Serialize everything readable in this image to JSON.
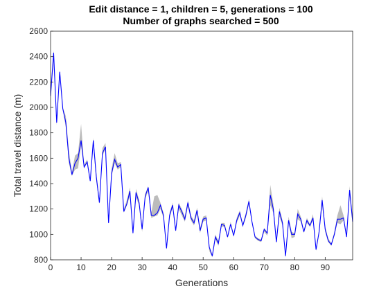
{
  "chart_data": {
    "type": "line",
    "title": [
      "Edit distance = 1, children = 5, generations = 100",
      "Number of graphs searched = 500"
    ],
    "xlabel": "Generations",
    "ylabel": "Total travel distance (m)",
    "xlim": [
      0,
      99
    ],
    "ylim": [
      800,
      2600
    ],
    "xticks": [
      0,
      10,
      20,
      30,
      40,
      50,
      60,
      70,
      80,
      90
    ],
    "yticks": [
      800,
      1000,
      1200,
      1400,
      1600,
      1800,
      2000,
      2200,
      2400,
      2600
    ],
    "grid": false,
    "colors": {
      "line": "#0000ff",
      "band": "#bcbcbc"
    },
    "series": [
      {
        "values": [
          2090,
          2430,
          1880,
          2280,
          1990,
          1880,
          1600,
          1470,
          1560,
          1600,
          1740,
          1530,
          1570,
          1420,
          1740,
          1450,
          1250,
          1640,
          1690,
          1090,
          1480,
          1590,
          1530,
          1550,
          1180,
          1240,
          1340,
          1010,
          1330,
          1250,
          1040,
          1300,
          1370,
          1150,
          1150,
          1170,
          1230,
          1150,
          890,
          1150,
          1230,
          1030,
          1230,
          1180,
          1120,
          1250,
          1130,
          1090,
          1190,
          1030,
          1120,
          1130,
          900,
          830,
          980,
          930,
          1080,
          1070,
          980,
          1080,
          990,
          1110,
          1170,
          1070,
          1150,
          1260,
          1100,
          980,
          960,
          950,
          1040,
          1010,
          1310,
          1200,
          940,
          1180,
          1090,
          830,
          1110,
          1000,
          1000,
          1160,
          1120,
          1020,
          1110,
          1070,
          1130,
          880,
          1020,
          1270,
          1040,
          950,
          920,
          1000,
          1120,
          1120,
          1130,
          980,
          1350,
          1100
        ]
      },
      {
        "values": [
          2100,
          2360,
          1860,
          2270,
          1990,
          1840,
          1560,
          1460,
          1510,
          1520,
          1700,
          1530,
          1560,
          1420,
          1700,
          1420,
          1240,
          1620,
          1670,
          1080,
          1460,
          1560,
          1510,
          1530,
          1170,
          1230,
          1300,
          1000,
          1290,
          1230,
          1020,
          1280,
          1340,
          1130,
          1140,
          1150,
          1200,
          1130,
          880,
          1130,
          1210,
          1020,
          1200,
          1150,
          1100,
          1220,
          1110,
          1070,
          1160,
          1010,
          1100,
          1110,
          870,
          820,
          960,
          910,
          1060,
          1060,
          970,
          1070,
          980,
          1090,
          1150,
          1060,
          1130,
          1240,
          1090,
          970,
          950,
          940,
          1020,
          990,
          1230,
          1170,
          930,
          1140,
          1070,
          820,
          1090,
          970,
          980,
          1120,
          1100,
          1010,
          1090,
          1060,
          1110,
          870,
          1010,
          1230,
          1020,
          940,
          910,
          990,
          1090,
          1080,
          1110,
          970,
          1300,
          1090
        ]
      },
      {
        "values": [
          2130,
          2450,
          1890,
          2290,
          2000,
          1930,
          1660,
          1490,
          1620,
          1640,
          1870,
          1550,
          1590,
          1440,
          1760,
          1480,
          1270,
          1680,
          1720,
          1100,
          1520,
          1640,
          1560,
          1570,
          1200,
          1270,
          1370,
          1030,
          1360,
          1270,
          1070,
          1320,
          1380,
          1170,
          1300,
          1310,
          1250,
          1170,
          900,
          1170,
          1250,
          1050,
          1250,
          1200,
          1140,
          1270,
          1150,
          1110,
          1210,
          1050,
          1140,
          1150,
          910,
          840,
          1000,
          950,
          1090,
          1090,
          990,
          1100,
          1000,
          1130,
          1190,
          1080,
          1170,
          1280,
          1110,
          990,
          970,
          960,
          1050,
          1020,
          1390,
          1240,
          950,
          1210,
          1110,
          850,
          1140,
          1020,
          1010,
          1200,
          1140,
          1030,
          1130,
          1080,
          1160,
          890,
          1040,
          1300,
          1060,
          970,
          930,
          1020,
          1150,
          1230,
          1150,
          990,
          1380,
          1110
        ]
      }
    ]
  }
}
